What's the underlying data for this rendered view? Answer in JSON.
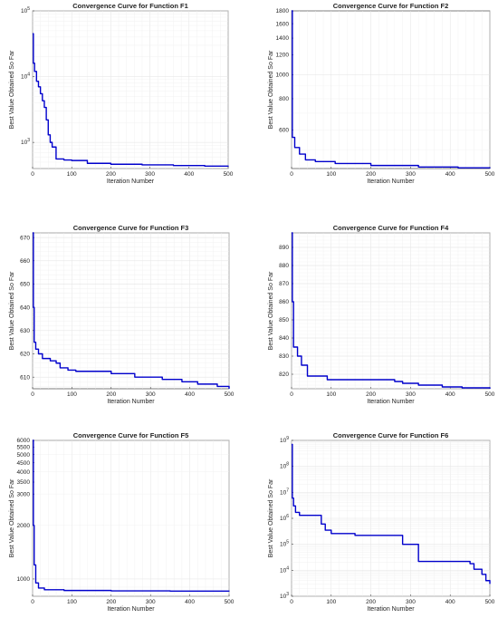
{
  "chart_data": [
    {
      "type": "line",
      "title": "Convergence Curve for Function F1",
      "xlabel": "Iteration Number",
      "ylabel": "Best Value Obtained So Far",
      "xlim": [
        0,
        500
      ],
      "ylim": [
        400,
        100000
      ],
      "yscale": "log",
      "grid": true,
      "x_ticks": [
        "0",
        "100",
        "200",
        "300",
        "400",
        "500"
      ],
      "y_ticks": [
        {
          "value": 1000,
          "label": "10^3"
        },
        {
          "value": 10000,
          "label": "10^4"
        },
        {
          "value": 100000,
          "label": "10^5"
        }
      ],
      "color": "#0000cc",
      "points": [
        [
          0,
          45000
        ],
        [
          2,
          16000
        ],
        [
          5,
          12000
        ],
        [
          10,
          8500
        ],
        [
          15,
          7000
        ],
        [
          20,
          5500
        ],
        [
          25,
          4300
        ],
        [
          30,
          3400
        ],
        [
          35,
          2200
        ],
        [
          40,
          1300
        ],
        [
          45,
          1000
        ],
        [
          50,
          850
        ],
        [
          60,
          560
        ],
        [
          80,
          540
        ],
        [
          100,
          530
        ],
        [
          140,
          480
        ],
        [
          200,
          465
        ],
        [
          280,
          455
        ],
        [
          360,
          445
        ],
        [
          440,
          435
        ],
        [
          500,
          428
        ]
      ]
    },
    {
      "type": "line",
      "title": "Convergence Curve for Function F2",
      "xlabel": "Iteration Number",
      "ylabel": "Best Value Obtained So Far",
      "xlim": [
        0,
        500
      ],
      "ylim": [
        420,
        1800
      ],
      "yscale": "log",
      "grid": true,
      "x_ticks": [
        "0",
        "100",
        "200",
        "300",
        "400",
        "500"
      ],
      "y_ticks": [
        {
          "value": 600,
          "label": "600"
        },
        {
          "value": 800,
          "label": "800"
        },
        {
          "value": 1000,
          "label": "1000"
        },
        {
          "value": 1200,
          "label": "1200"
        },
        {
          "value": 1400,
          "label": "1400"
        },
        {
          "value": 1600,
          "label": "1600"
        },
        {
          "value": 1800,
          "label": "1800"
        }
      ],
      "color": "#0000cc",
      "points": [
        [
          0,
          1800
        ],
        [
          2,
          560
        ],
        [
          8,
          510
        ],
        [
          20,
          480
        ],
        [
          35,
          455
        ],
        [
          60,
          448
        ],
        [
          110,
          440
        ],
        [
          200,
          432
        ],
        [
          320,
          426
        ],
        [
          420,
          423
        ],
        [
          500,
          421
        ]
      ]
    },
    {
      "type": "line",
      "title": "Convergence Curve for Function F3",
      "xlabel": "Iteration Number",
      "ylabel": "Best Value Obtained So Far",
      "xlim": [
        0,
        500
      ],
      "ylim": [
        605,
        672
      ],
      "yscale": "linear",
      "grid": true,
      "x_ticks": [
        "0",
        "100",
        "200",
        "300",
        "400",
        "500"
      ],
      "y_ticks": [
        {
          "value": 610,
          "label": "610"
        },
        {
          "value": 620,
          "label": "620"
        },
        {
          "value": 630,
          "label": "630"
        },
        {
          "value": 640,
          "label": "640"
        },
        {
          "value": 650,
          "label": "650"
        },
        {
          "value": 660,
          "label": "660"
        },
        {
          "value": 670,
          "label": "670"
        }
      ],
      "color": "#0000cc",
      "points": [
        [
          0,
          672
        ],
        [
          2,
          640
        ],
        [
          4,
          625
        ],
        [
          8,
          622
        ],
        [
          15,
          620
        ],
        [
          25,
          618
        ],
        [
          45,
          617
        ],
        [
          60,
          616
        ],
        [
          70,
          614
        ],
        [
          90,
          613
        ],
        [
          110,
          612.5
        ],
        [
          200,
          611.5
        ],
        [
          260,
          610
        ],
        [
          330,
          609
        ],
        [
          380,
          608
        ],
        [
          420,
          607
        ],
        [
          470,
          606
        ],
        [
          500,
          605
        ]
      ]
    },
    {
      "type": "line",
      "title": "Convergence Curve for Function F4",
      "xlabel": "Iteration Number",
      "ylabel": "Best Value Obtained So Far",
      "xlim": [
        0,
        500
      ],
      "ylim": [
        812,
        898
      ],
      "yscale": "linear",
      "grid": true,
      "x_ticks": [
        "0",
        "100",
        "200",
        "300",
        "400",
        "500"
      ],
      "y_ticks": [
        {
          "value": 820,
          "label": "820"
        },
        {
          "value": 830,
          "label": "830"
        },
        {
          "value": 840,
          "label": "840"
        },
        {
          "value": 850,
          "label": "850"
        },
        {
          "value": 860,
          "label": "860"
        },
        {
          "value": 870,
          "label": "870"
        },
        {
          "value": 880,
          "label": "880"
        },
        {
          "value": 890,
          "label": "890"
        }
      ],
      "color": "#0000cc",
      "points": [
        [
          0,
          898
        ],
        [
          2,
          860
        ],
        [
          5,
          835
        ],
        [
          15,
          830
        ],
        [
          25,
          825
        ],
        [
          40,
          819
        ],
        [
          90,
          817
        ],
        [
          260,
          816
        ],
        [
          280,
          815
        ],
        [
          320,
          814
        ],
        [
          380,
          813
        ],
        [
          430,
          812.5
        ],
        [
          500,
          812
        ]
      ]
    },
    {
      "type": "line",
      "title": "Convergence Curve for Function F5",
      "xlabel": "Iteration Number",
      "ylabel": "Best Value Obtained So Far",
      "xlim": [
        0,
        500
      ],
      "ylim": [
        800,
        6000
      ],
      "yscale": "log",
      "grid": true,
      "x_ticks": [
        "0",
        "100",
        "200",
        "300",
        "400",
        "500"
      ],
      "y_ticks": [
        {
          "value": 1000,
          "label": "1000"
        },
        {
          "value": 2000,
          "label": "2000"
        },
        {
          "value": 3000,
          "label": "3000"
        },
        {
          "value": 3500,
          "label": "3500"
        },
        {
          "value": 4000,
          "label": "4000"
        },
        {
          "value": 4500,
          "label": "4500"
        },
        {
          "value": 5000,
          "label": "5000"
        },
        {
          "value": 5500,
          "label": "5500"
        },
        {
          "value": 6000,
          "label": "6000"
        }
      ],
      "color": "#0000cc",
      "points": [
        [
          0,
          6000
        ],
        [
          2,
          2000
        ],
        [
          4,
          1200
        ],
        [
          8,
          950
        ],
        [
          15,
          890
        ],
        [
          30,
          870
        ],
        [
          80,
          862
        ],
        [
          200,
          858
        ],
        [
          350,
          855
        ],
        [
          500,
          852
        ]
      ]
    },
    {
      "type": "line",
      "title": "Convergence Curve for Function F6",
      "xlabel": "Iteration Number",
      "ylabel": "Best Value Obtained So Far",
      "xlim": [
        0,
        500
      ],
      "ylim": [
        1000,
        1000000000
      ],
      "yscale": "log",
      "grid": true,
      "x_ticks": [
        "0",
        "100",
        "200",
        "300",
        "400",
        "500"
      ],
      "y_ticks": [
        {
          "value": 1000,
          "label": "10^3"
        },
        {
          "value": 10000,
          "label": "10^4"
        },
        {
          "value": 100000,
          "label": "10^5"
        },
        {
          "value": 1000000,
          "label": "10^6"
        },
        {
          "value": 10000000,
          "label": "10^7"
        },
        {
          "value": 100000000,
          "label": "10^8"
        },
        {
          "value": 1000000000,
          "label": "10^9"
        }
      ],
      "color": "#0000cc",
      "points": [
        [
          0,
          700000000
        ],
        [
          2,
          6000000
        ],
        [
          5,
          3000000
        ],
        [
          10,
          1700000
        ],
        [
          20,
          1300000
        ],
        [
          75,
          600000
        ],
        [
          85,
          350000
        ],
        [
          100,
          260000
        ],
        [
          160,
          220000
        ],
        [
          280,
          100000
        ],
        [
          320,
          22000
        ],
        [
          450,
          18000
        ],
        [
          460,
          11000
        ],
        [
          480,
          7000
        ],
        [
          490,
          4000
        ],
        [
          500,
          3000
        ]
      ]
    }
  ]
}
